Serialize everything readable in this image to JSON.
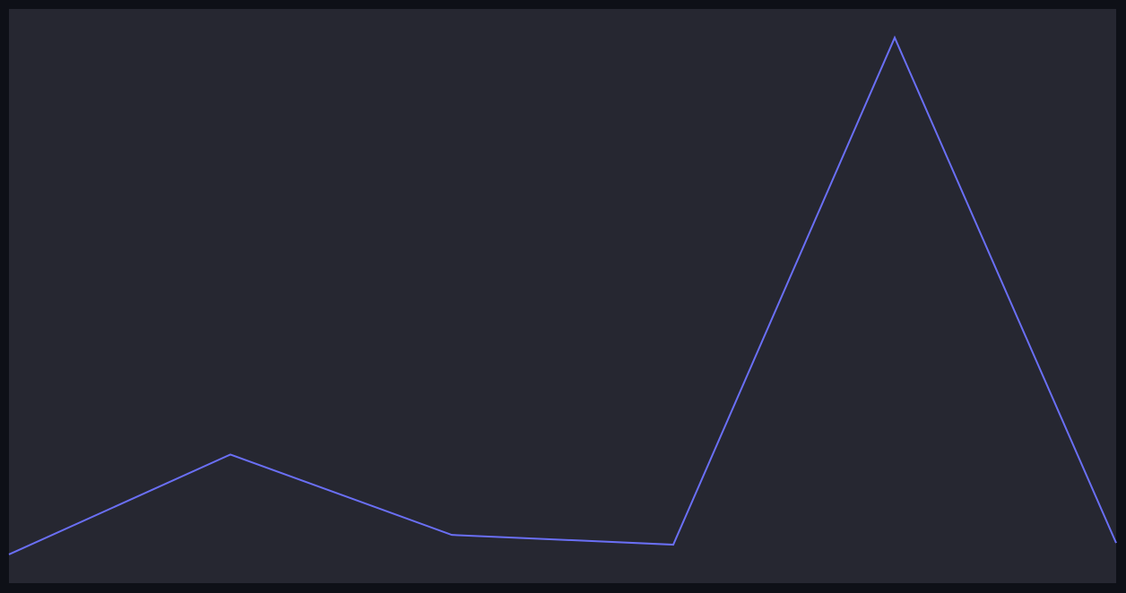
{
  "colors": {
    "page_background": "#0e1017",
    "plot_background": "#262731",
    "series_line": "#6a6ff5"
  },
  "chart_data": {
    "type": "line",
    "title": "",
    "xlabel": "",
    "ylabel": "",
    "grid": false,
    "legend": "none",
    "x": [
      0,
      1,
      2,
      3,
      4,
      5
    ],
    "ylim": [
      0,
      100
    ],
    "series": [
      {
        "color": "#6a6ff5",
        "values": [
          5.0,
          22.4,
          8.4,
          6.7,
          95.0,
          7.0
        ]
      }
    ]
  }
}
